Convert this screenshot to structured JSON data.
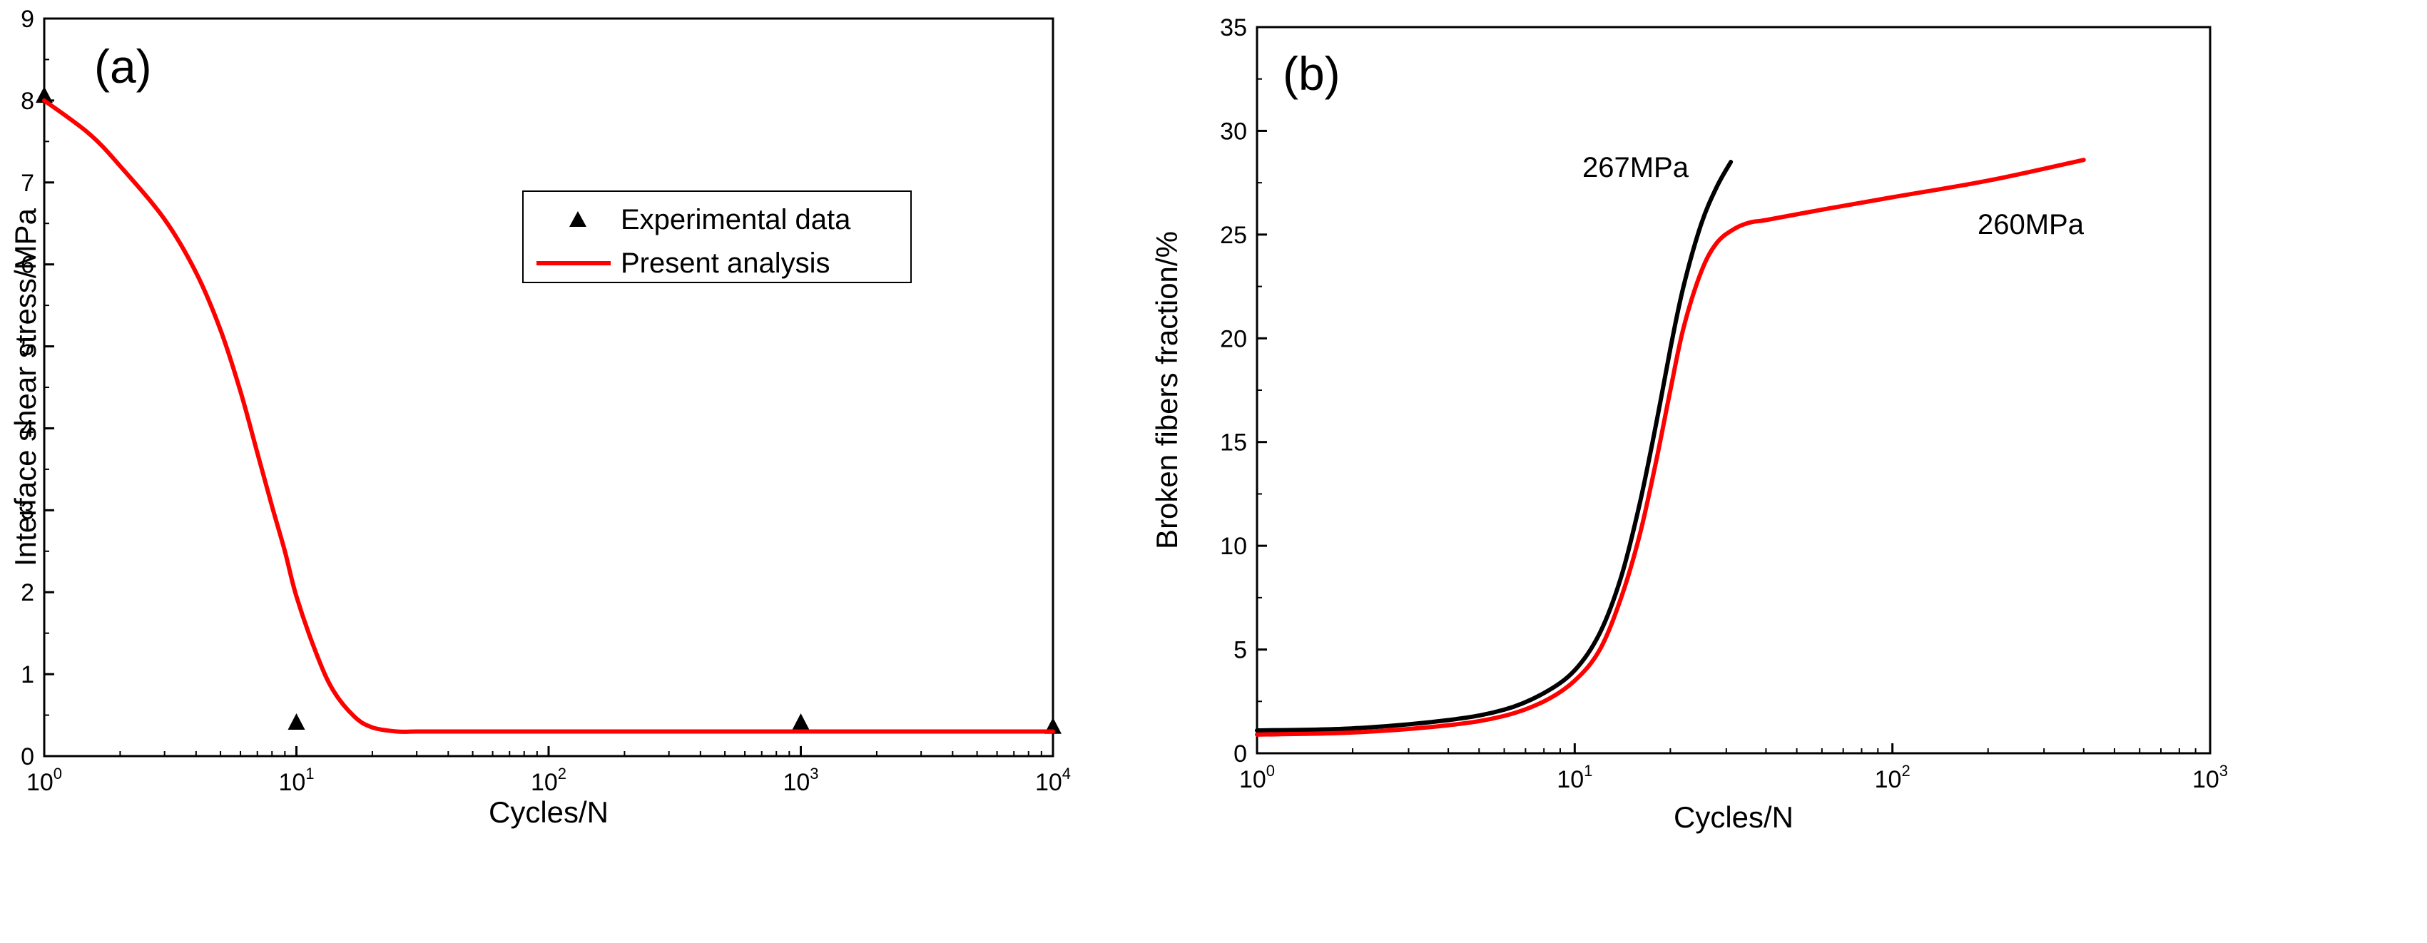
{
  "chart_data": [
    {
      "type": "line",
      "panel_label": "(a)",
      "xlabel": "Cycles/N",
      "ylabel": "Interface shear stress/MPa",
      "xscale": "log",
      "xlim": [
        1,
        10000
      ],
      "ylim": [
        0,
        9
      ],
      "x_ticks": [
        {
          "base": "10",
          "exp": "0",
          "value": 1
        },
        {
          "base": "10",
          "exp": "1",
          "value": 10
        },
        {
          "base": "10",
          "exp": "2",
          "value": 100
        },
        {
          "base": "10",
          "exp": "3",
          "value": 1000
        },
        {
          "base": "10",
          "exp": "4",
          "value": 10000
        }
      ],
      "y_ticks": [
        "0",
        "1",
        "2",
        "3",
        "4",
        "5",
        "6",
        "7",
        "8",
        "9"
      ],
      "legend": {
        "position": "upper-right",
        "entries": [
          {
            "label": "Experimental data",
            "marker": "triangle",
            "color": "#000000"
          },
          {
            "label": "Present analysis",
            "marker": "line",
            "color": "#ff0000"
          }
        ]
      },
      "series": [
        {
          "name": "Experimental data",
          "style": "marker",
          "color": "#000000",
          "x": [
            1,
            10,
            1000,
            10000
          ],
          "y": [
            8.05,
            0.4,
            0.4,
            0.35
          ]
        },
        {
          "name": "Present analysis",
          "style": "line",
          "color": "#ff0000",
          "x": [
            1,
            1.5,
            2,
            3,
            4,
            5,
            6,
            7,
            8,
            9,
            10,
            12,
            14,
            17,
            20,
            25,
            30,
            50,
            100,
            1000,
            10000
          ],
          "y": [
            8.0,
            7.6,
            7.2,
            6.55,
            5.9,
            5.2,
            4.45,
            3.7,
            3.05,
            2.5,
            1.95,
            1.25,
            0.8,
            0.48,
            0.35,
            0.3,
            0.3,
            0.3,
            0.3,
            0.3,
            0.3
          ]
        }
      ]
    },
    {
      "type": "line",
      "panel_label": "(b)",
      "xlabel": "Cycles/N",
      "ylabel": "Broken fibers fraction/%",
      "xscale": "log",
      "xlim": [
        1,
        1000
      ],
      "ylim": [
        0,
        35
      ],
      "x_ticks": [
        {
          "base": "10",
          "exp": "0",
          "value": 1
        },
        {
          "base": "10",
          "exp": "1",
          "value": 10
        },
        {
          "base": "10",
          "exp": "2",
          "value": 100
        },
        {
          "base": "10",
          "exp": "3",
          "value": 1000
        }
      ],
      "y_ticks": [
        "0",
        "5",
        "10",
        "15",
        "20",
        "25",
        "30",
        "35"
      ],
      "annotations": [
        {
          "text": "267MPa",
          "x": 20,
          "y": 29.3
        },
        {
          "text": "260MPa",
          "x": 305,
          "y": 27.2
        }
      ],
      "series": [
        {
          "name": "267MPa",
          "style": "line",
          "color": "#000000",
          "x": [
            1,
            2,
            4,
            6,
            8,
            10,
            12,
            14,
            16,
            18,
            20,
            22,
            25,
            28,
            31
          ],
          "y": [
            1.1,
            1.2,
            1.6,
            2.1,
            2.9,
            4.0,
            5.8,
            8.5,
            12.0,
            15.8,
            19.5,
            22.5,
            25.5,
            27.3,
            28.5
          ]
        },
        {
          "name": "260MPa",
          "style": "line",
          "color": "#ff0000",
          "x": [
            1,
            2,
            4,
            6,
            8,
            10,
            12,
            14,
            16,
            18,
            20,
            22,
            25,
            28,
            32,
            36,
            40,
            60,
            100,
            200,
            400
          ],
          "y": [
            0.9,
            1.0,
            1.35,
            1.8,
            2.5,
            3.5,
            5.0,
            7.5,
            10.5,
            14.0,
            17.5,
            20.5,
            23.2,
            24.6,
            25.3,
            25.6,
            25.7,
            26.2,
            26.8,
            27.6,
            28.6
          ]
        }
      ]
    }
  ]
}
